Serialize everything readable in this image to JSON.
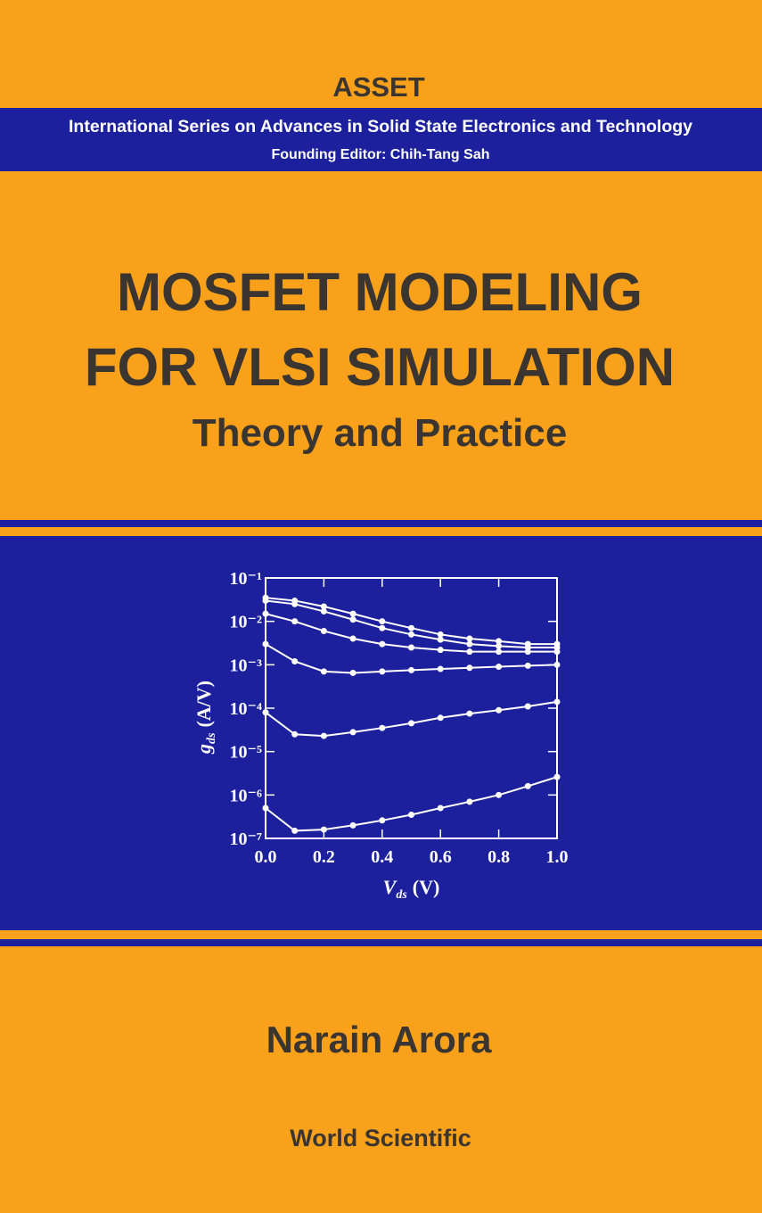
{
  "series_label": "ASSET",
  "series_band": {
    "name": "International Series on Advances in Solid State Electronics and Technology",
    "editor": "Founding Editor: Chih-Tang Sah"
  },
  "title": {
    "lines": [
      "MOSFET MODELING",
      "FOR VLSI SIMULATION"
    ],
    "subtitle": "Theory and Practice"
  },
  "author": "Narain Arora",
  "publisher": "World Scientific",
  "chart_data": {
    "type": "line",
    "log_scale_y": true,
    "color": "#ffffff",
    "ylabel": {
      "symbol": "g",
      "subscript": "ds",
      "unit": "(A/V)"
    },
    "xlabel": {
      "symbol": "V",
      "subscript": "ds",
      "unit": "(V)"
    },
    "x": [
      0,
      0.1,
      0.2,
      0.3,
      0.4,
      0.5,
      0.6,
      0.7,
      0.8,
      0.9,
      1.0
    ],
    "xlim": [
      0,
      1
    ],
    "xticks": [
      {
        "value": 0,
        "label": "0.0"
      },
      0.2,
      0.4,
      0.6,
      0.8,
      {
        "value": 1,
        "label": "1.0"
      }
    ],
    "ylim": [
      1e-07,
      0.1
    ],
    "yticks": [
      {
        "value": 1e-07,
        "label": "10⁻⁷"
      },
      {
        "value": 1e-06,
        "label": "10⁻⁶"
      },
      {
        "value": 1e-05,
        "label": "10⁻⁵"
      },
      {
        "value": 0.0001,
        "label": "10⁻⁴"
      },
      {
        "value": 0.001,
        "label": "10⁻³"
      },
      {
        "value": 0.01,
        "label": "10⁻²"
      },
      {
        "value": 0.1,
        "label": "10⁻¹"
      }
    ],
    "series": [
      {
        "values": [
          0.035,
          0.03,
          0.022,
          0.015,
          0.01,
          0.007,
          0.005,
          0.004,
          0.0035,
          0.003,
          0.003
        ]
      },
      {
        "values": [
          0.03,
          0.025,
          0.017,
          0.011,
          0.007,
          0.005,
          0.0038,
          0.003,
          0.0027,
          0.0025,
          0.0025
        ]
      },
      {
        "values": [
          0.015,
          0.01,
          0.006,
          0.004,
          0.003,
          0.0025,
          0.0022,
          0.002,
          0.002,
          0.002,
          0.002
        ]
      },
      {
        "values": [
          0.003,
          0.0012,
          0.0007,
          0.00065,
          0.0007,
          0.00075,
          0.0008,
          0.00085,
          0.0009,
          0.00095,
          0.001
        ]
      },
      {
        "values": [
          8e-05,
          2.5e-05,
          2.3e-05,
          2.8e-05,
          3.5e-05,
          4.5e-05,
          6e-05,
          7.5e-05,
          9e-05,
          0.00011,
          0.00014
        ]
      },
      {
        "values": [
          5e-07,
          1.5e-07,
          1.6e-07,
          2e-07,
          2.6e-07,
          3.5e-07,
          5e-07,
          7e-07,
          1e-06,
          1.6e-06,
          2.6e-06
        ]
      }
    ]
  }
}
